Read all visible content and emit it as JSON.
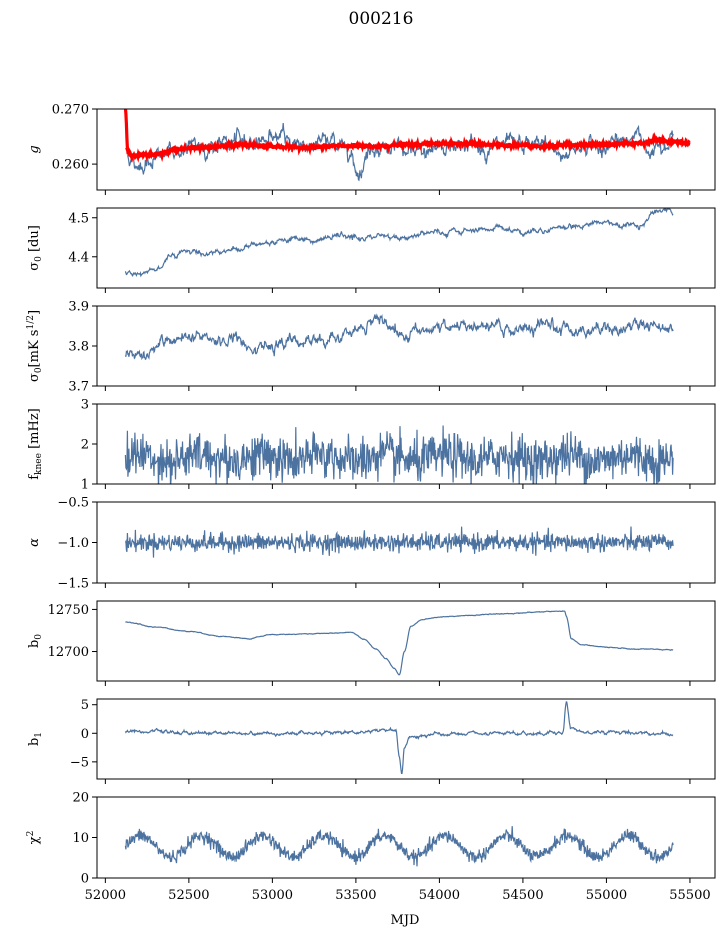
{
  "figure": {
    "title": "000216"
  },
  "chart_data": {
    "type": "line",
    "title": "000216",
    "xlabel": "MJD",
    "xlim": [
      51950,
      55650
    ],
    "xticks": [
      52000,
      52500,
      53000,
      53500,
      54000,
      54500,
      55000,
      55500
    ],
    "xtick_labels": [
      "52000",
      "52500",
      "53000",
      "53500",
      "54000",
      "54500",
      "55000",
      "55500"
    ],
    "x_start": 52120,
    "x_end": 55400,
    "series_color": "#4c72a0",
    "panels": [
      {
        "id": "g",
        "ylabel": "g",
        "ylim": [
          0.2553,
          0.27
        ],
        "yticks": [
          0.26,
          0.27
        ],
        "ytick_labels": [
          "0.260",
          "0.270"
        ],
        "kind": "smooth",
        "anchors": [
          [
            52120,
            0.2628
          ],
          [
            52180,
            0.2598
          ],
          [
            52300,
            0.2612
          ],
          [
            52450,
            0.2625
          ],
          [
            52600,
            0.2632
          ],
          [
            52750,
            0.2638
          ],
          [
            52900,
            0.2644
          ],
          [
            53000,
            0.2652
          ],
          [
            53100,
            0.2641
          ],
          [
            53200,
            0.2636
          ],
          [
            53350,
            0.264
          ],
          [
            53450,
            0.2632
          ],
          [
            53520,
            0.259
          ],
          [
            53600,
            0.2635
          ],
          [
            53700,
            0.2628
          ],
          [
            53850,
            0.2615
          ],
          [
            54000,
            0.2632
          ],
          [
            54150,
            0.2638
          ],
          [
            54300,
            0.263
          ],
          [
            54450,
            0.2628
          ],
          [
            54600,
            0.2635
          ],
          [
            54750,
            0.262
          ],
          [
            54850,
            0.2635
          ],
          [
            55000,
            0.263
          ],
          [
            55100,
            0.264
          ],
          [
            55150,
            0.2655
          ],
          [
            55250,
            0.2632
          ],
          [
            55350,
            0.265
          ],
          [
            55400,
            0.2646
          ]
        ],
        "noise": 0.0009,
        "overlay": {
          "color": "#ff0000",
          "anchors": [
            [
              52120,
              0.27
            ],
            [
              52135,
              0.2625
            ],
            [
              52160,
              0.2615
            ],
            [
              52300,
              0.2618
            ],
            [
              52450,
              0.2628
            ],
            [
              52600,
              0.263
            ],
            [
              52800,
              0.2635
            ],
            [
              53000,
              0.2632
            ],
            [
              53200,
              0.263
            ],
            [
              53400,
              0.2633
            ],
            [
              53600,
              0.2632
            ],
            [
              53800,
              0.2635
            ],
            [
              54000,
              0.2638
            ],
            [
              54200,
              0.2637
            ],
            [
              54400,
              0.2634
            ],
            [
              54600,
              0.2632
            ],
            [
              54800,
              0.2634
            ],
            [
              55000,
              0.2636
            ],
            [
              55200,
              0.2638
            ],
            [
              55300,
              0.2644
            ],
            [
              55400,
              0.264
            ],
            [
              55500,
              0.2638
            ]
          ]
        }
      },
      {
        "id": "sigma0-du",
        "ylabel": "σ0 [du]",
        "ylim": [
          4.32,
          4.525
        ],
        "yticks": [
          4.4,
          4.5
        ],
        "ytick_labels": [
          "4.4",
          "4.5"
        ],
        "kind": "smooth",
        "anchors": [
          [
            52120,
            4.364
          ],
          [
            52200,
            4.355
          ],
          [
            52300,
            4.37
          ],
          [
            52400,
            4.405
          ],
          [
            52500,
            4.415
          ],
          [
            52600,
            4.408
          ],
          [
            52750,
            4.42
          ],
          [
            52900,
            4.43
          ],
          [
            53000,
            4.44
          ],
          [
            53100,
            4.448
          ],
          [
            53250,
            4.44
          ],
          [
            53400,
            4.455
          ],
          [
            53550,
            4.445
          ],
          [
            53650,
            4.455
          ],
          [
            53800,
            4.448
          ],
          [
            53900,
            4.462
          ],
          [
            54100,
            4.46
          ],
          [
            54200,
            4.47
          ],
          [
            54350,
            4.475
          ],
          [
            54500,
            4.465
          ],
          [
            54650,
            4.47
          ],
          [
            54800,
            4.48
          ],
          [
            55000,
            4.49
          ],
          [
            55100,
            4.478
          ],
          [
            55200,
            4.485
          ],
          [
            55300,
            4.51
          ],
          [
            55380,
            4.52
          ],
          [
            55400,
            4.505
          ]
        ],
        "noise": 0.004
      },
      {
        "id": "sigma0-mk",
        "ylabel": "σ0[mK s^1/2]",
        "ylim": [
          3.7,
          3.9
        ],
        "yticks": [
          3.7,
          3.8,
          3.9
        ],
        "ytick_labels": [
          "3.7",
          "3.8",
          "3.9"
        ],
        "kind": "smooth",
        "anchors": [
          [
            52120,
            3.78
          ],
          [
            52250,
            3.79
          ],
          [
            52400,
            3.805
          ],
          [
            52500,
            3.815
          ],
          [
            52650,
            3.81
          ],
          [
            52800,
            3.818
          ],
          [
            52900,
            3.808
          ],
          [
            53000,
            3.8
          ],
          [
            53150,
            3.81
          ],
          [
            53300,
            3.815
          ],
          [
            53450,
            3.825
          ],
          [
            53550,
            3.835
          ],
          [
            53600,
            3.88
          ],
          [
            53700,
            3.84
          ],
          [
            53850,
            3.83
          ],
          [
            53950,
            3.845
          ],
          [
            54100,
            3.848
          ],
          [
            54300,
            3.845
          ],
          [
            54500,
            3.84
          ],
          [
            54700,
            3.845
          ],
          [
            54900,
            3.845
          ],
          [
            55050,
            3.84
          ],
          [
            55150,
            3.852
          ],
          [
            55300,
            3.855
          ],
          [
            55400,
            3.85
          ]
        ],
        "noise": 0.009
      },
      {
        "id": "fknee",
        "ylabel": "f_knee [mHz]",
        "ylim": [
          1,
          3
        ],
        "yticks": [
          1,
          2,
          3
        ],
        "ytick_labels": [
          "1",
          "2",
          "3"
        ],
        "kind": "noisy",
        "mean": 1.65,
        "noise": 0.28,
        "wave_amp": 0.08,
        "wave_period": 365
      },
      {
        "id": "alpha",
        "ylabel": "α",
        "ylim": [
          -1.5,
          -0.5
        ],
        "yticks": [
          -1.5,
          -1.0,
          -0.5
        ],
        "ytick_labels": [
          "−1.5",
          "−1.0",
          "−0.5"
        ],
        "kind": "noisy",
        "mean": -1.0,
        "noise": 0.055,
        "wave_amp": 0.0,
        "wave_period": 365
      },
      {
        "id": "b0",
        "ylabel": "b0",
        "ylim": [
          12665,
          12760
        ],
        "yticks": [
          12700,
          12750
        ],
        "ytick_labels": [
          "12700",
          "12750"
        ],
        "kind": "smooth",
        "anchors": [
          [
            52120,
            12735
          ],
          [
            52300,
            12729
          ],
          [
            52500,
            12724
          ],
          [
            52700,
            12718
          ],
          [
            52850,
            12715
          ],
          [
            53000,
            12720
          ],
          [
            53200,
            12721
          ],
          [
            53400,
            12722
          ],
          [
            53470,
            12723
          ],
          [
            53550,
            12715
          ],
          [
            53620,
            12703
          ],
          [
            53680,
            12692
          ],
          [
            53730,
            12680
          ],
          [
            53760,
            12672
          ],
          [
            53790,
            12700
          ],
          [
            53830,
            12730
          ],
          [
            53900,
            12738
          ],
          [
            54000,
            12741
          ],
          [
            54200,
            12743
          ],
          [
            54400,
            12745
          ],
          [
            54600,
            12747
          ],
          [
            54750,
            12748
          ],
          [
            54760,
            12742
          ],
          [
            54790,
            12715
          ],
          [
            54850,
            12708
          ],
          [
            55000,
            12705
          ],
          [
            55200,
            12703
          ],
          [
            55400,
            12702
          ]
        ],
        "noise": 0.25
      },
      {
        "id": "b1",
        "ylabel": "b1",
        "ylim": [
          -8,
          6
        ],
        "yticks": [
          -5,
          0,
          5
        ],
        "ytick_labels": [
          "−5",
          "0",
          "5"
        ],
        "kind": "smooth",
        "anchors": [
          [
            52120,
            0.3
          ],
          [
            52500,
            0.1
          ],
          [
            53000,
            0.0
          ],
          [
            53500,
            0.2
          ],
          [
            53700,
            0.6
          ],
          [
            53740,
            0.5
          ],
          [
            53760,
            -4.0
          ],
          [
            53775,
            -7.0
          ],
          [
            53790,
            -2.5
          ],
          [
            53830,
            -0.8
          ],
          [
            54000,
            -0.2
          ],
          [
            54500,
            -0.1
          ],
          [
            54740,
            0.2
          ],
          [
            54760,
            5.5
          ],
          [
            54785,
            1.0
          ],
          [
            54850,
            0.3
          ],
          [
            55400,
            0.0
          ]
        ],
        "noise": 0.18
      },
      {
        "id": "chi2",
        "ylabel": "χ2",
        "ylim": [
          0,
          20
        ],
        "yticks": [
          0,
          10,
          20
        ],
        "ytick_labels": [
          "0",
          "10",
          "20"
        ],
        "kind": "noisy",
        "mean": 7.8,
        "noise": 0.8,
        "wave_amp": 2.6,
        "wave_period": 365
      }
    ]
  }
}
